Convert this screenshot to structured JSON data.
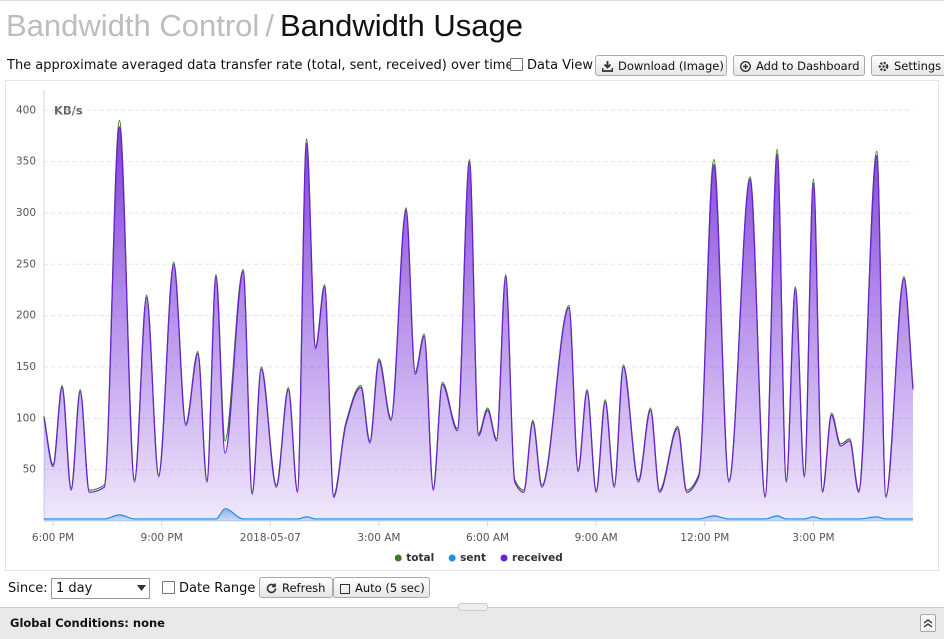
{
  "header": {
    "parent": "Bandwidth Control",
    "separator": "/",
    "title": "Bandwidth Usage"
  },
  "toolbar": {
    "description": "The approximate averaged data transfer rate (total, sent, received) over time.",
    "data_view": "Data View",
    "buttons": [
      "Download (Image)",
      "Add to Dashboard",
      "Settings"
    ]
  },
  "chart_data": {
    "type": "area",
    "y_label": "KB/s",
    "x": [
      "2018-05-06 17:45",
      "2018-05-06 18:00",
      "2018-05-06 18:15",
      "2018-05-06 18:30",
      "2018-05-06 18:45",
      "2018-05-06 19:00",
      "2018-05-06 19:25",
      "2018-05-06 19:50",
      "2018-05-06 20:15",
      "2018-05-06 20:35",
      "2018-05-06 20:55",
      "2018-05-06 21:20",
      "2018-05-06 21:40",
      "2018-05-06 22:00",
      "2018-05-06 22:15",
      "2018-05-06 22:30",
      "2018-05-06 22:45",
      "2018-05-06 23:15",
      "2018-05-06 23:30",
      "2018-05-06 23:45",
      "2018-05-07 00:10",
      "2018-05-07 00:30",
      "2018-05-07 00:45",
      "2018-05-07 01:00",
      "2018-05-07 01:15",
      "2018-05-07 01:30",
      "2018-05-07 01:45",
      "2018-05-07 02:05",
      "2018-05-07 02:30",
      "2018-05-07 02:45",
      "2018-05-07 03:00",
      "2018-05-07 03:20",
      "2018-05-07 03:45",
      "2018-05-07 04:00",
      "2018-05-07 04:15",
      "2018-05-07 04:30",
      "2018-05-07 04:45",
      "2018-05-07 05:10",
      "2018-05-07 05:30",
      "2018-05-07 05:45",
      "2018-05-07 06:00",
      "2018-05-07 06:15",
      "2018-05-07 06:30",
      "2018-05-07 06:45",
      "2018-05-07 07:00",
      "2018-05-07 07:15",
      "2018-05-07 07:30",
      "2018-05-07 08:15",
      "2018-05-07 08:30",
      "2018-05-07 08:45",
      "2018-05-07 09:00",
      "2018-05-07 09:15",
      "2018-05-07 09:30",
      "2018-05-07 09:45",
      "2018-05-07 10:10",
      "2018-05-07 10:30",
      "2018-05-07 10:45",
      "2018-05-07 11:15",
      "2018-05-07 11:30",
      "2018-05-07 11:50",
      "2018-05-07 12:15",
      "2018-05-07 12:40",
      "2018-05-07 13:15",
      "2018-05-07 13:40",
      "2018-05-07 14:00",
      "2018-05-07 14:15",
      "2018-05-07 14:30",
      "2018-05-07 14:45",
      "2018-05-07 15:00",
      "2018-05-07 15:15",
      "2018-05-07 15:30",
      "2018-05-07 15:45",
      "2018-05-07 16:00",
      "2018-05-07 16:15",
      "2018-05-07 16:45",
      "2018-05-07 17:00",
      "2018-05-07 17:30",
      "2018-05-07 17:45"
    ],
    "series": [
      {
        "name": "total",
        "color": "#3d7a26",
        "fill": false,
        "values": [
          102,
          55,
          132,
          32,
          128,
          30,
          35,
          390,
          40,
          220,
          45,
          252,
          95,
          165,
          40,
          240,
          78,
          245,
          28,
          150,
          35,
          130,
          30,
          372,
          170,
          230,
          25,
          95,
          132,
          78,
          158,
          100,
          305,
          145,
          182,
          32,
          135,
          90,
          352,
          85,
          110,
          80,
          240,
          40,
          30,
          98,
          35,
          210,
          50,
          128,
          30,
          118,
          35,
          152,
          40,
          110,
          30,
          92,
          30,
          45,
          352,
          40,
          335,
          25,
          362,
          40,
          228,
          45,
          333,
          30,
          105,
          75,
          80,
          30,
          360,
          25,
          238,
          130
        ]
      },
      {
        "name": "sent",
        "color": "#1e90e6",
        "fill": true,
        "values": [
          2,
          2,
          2,
          2,
          2,
          2,
          2,
          6,
          2,
          2,
          2,
          2,
          2,
          2,
          2,
          2,
          12,
          2,
          2,
          2,
          2,
          2,
          2,
          4,
          2,
          2,
          2,
          2,
          2,
          2,
          2,
          2,
          2,
          2,
          2,
          2,
          2,
          2,
          2,
          2,
          2,
          2,
          2,
          2,
          2,
          2,
          2,
          2,
          2,
          2,
          2,
          2,
          2,
          2,
          2,
          2,
          2,
          2,
          2,
          2,
          5,
          2,
          2,
          2,
          5,
          2,
          2,
          2,
          4,
          2,
          2,
          2,
          2,
          2,
          4,
          2,
          2,
          2
        ]
      },
      {
        "name": "received",
        "color": "#6b1fd6",
        "fill": true,
        "values": [
          100,
          53,
          130,
          30,
          126,
          28,
          33,
          384,
          38,
          218,
          43,
          250,
          93,
          163,
          38,
          238,
          66,
          243,
          26,
          148,
          33,
          128,
          28,
          368,
          168,
          228,
          23,
          93,
          130,
          76,
          156,
          98,
          303,
          143,
          180,
          30,
          133,
          88,
          350,
          83,
          108,
          78,
          238,
          38,
          28,
          96,
          33,
          208,
          48,
          126,
          28,
          116,
          33,
          150,
          38,
          108,
          28,
          90,
          28,
          43,
          347,
          38,
          333,
          23,
          357,
          38,
          226,
          43,
          329,
          28,
          103,
          73,
          78,
          28,
          356,
          23,
          236,
          128
        ]
      }
    ],
    "xlim": [
      "2018-05-06 17:45",
      "2018-05-07 17:45"
    ],
    "xticks": [
      {
        "value": "2018-05-06 18:00",
        "label": "6:00 PM"
      },
      {
        "value": "2018-05-06 21:00",
        "label": "9:00 PM"
      },
      {
        "value": "2018-05-07 00:00",
        "label": "2018-05-07"
      },
      {
        "value": "2018-05-07 03:00",
        "label": "3:00 AM"
      },
      {
        "value": "2018-05-07 06:00",
        "label": "6:00 AM"
      },
      {
        "value": "2018-05-07 09:00",
        "label": "9:00 AM"
      },
      {
        "value": "2018-05-07 12:00",
        "label": "12:00 PM"
      },
      {
        "value": "2018-05-07 15:00",
        "label": "3:00 PM"
      }
    ],
    "ylim": [
      0,
      410
    ],
    "yticks": [
      50,
      100,
      150,
      200,
      250,
      300,
      350,
      400
    ],
    "grid": true,
    "legend": "bottom"
  },
  "controls": {
    "since_label": "Since:",
    "since_value": "1 day",
    "date_range": "Date Range",
    "refresh": "Refresh",
    "auto": "Auto (5 sec)"
  },
  "footer": {
    "text": "Global Conditions: none"
  }
}
